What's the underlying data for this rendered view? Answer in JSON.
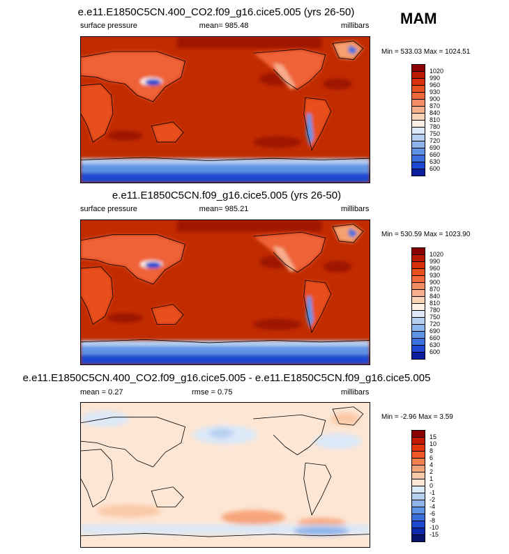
{
  "season": "MAM",
  "panels": [
    {
      "title": "e.e11.E1850C5CN.400_CO2.f09_g16.cice5.005 (yrs 26-50)",
      "left": "surface pressure",
      "center": "mean= 985.48",
      "right": "millibars",
      "minmax": "Min = 533.03 Max = 1024.51",
      "palette": "pressure"
    },
    {
      "title": "e.e11.E1850C5CN.f09_g16.cice5.005 (yrs 26-50)",
      "left": "surface pressure",
      "center": "mean= 985.21",
      "right": "millibars",
      "minmax": "Min = 530.59 Max = 1023.90",
      "palette": "pressure"
    },
    {
      "title": "e.e11.E1850C5CN.400_CO2.f09_g16.cice5.005 - e.e11.E1850C5CN.f09_g16.cice5.005",
      "left": "mean =   0.27",
      "center": "rmse =   0.75",
      "right": "millibars",
      "minmax": "Min =  -2.96 Max =   3.59",
      "palette": "diff"
    }
  ],
  "colorbars": {
    "pressure": {
      "labels": [
        "1020",
        "990",
        "960",
        "930",
        "900",
        "870",
        "840",
        "810",
        "780",
        "750",
        "720",
        "690",
        "660",
        "630",
        "600"
      ],
      "colors": [
        "#8b0000",
        "#b81a00",
        "#d6300c",
        "#e8501e",
        "#f06a3c",
        "#f48c64",
        "#f7ae8c",
        "#fbd4b8",
        "#fdf0e4",
        "#dde9f8",
        "#b6d0f2",
        "#8db5ec",
        "#5f94e4",
        "#3a6fdc",
        "#1f48d0",
        "#0a1e9e"
      ]
    },
    "diff": {
      "labels": [
        "15",
        "10",
        "8",
        "6",
        "4",
        "2",
        "1",
        "0",
        "-1",
        "-2",
        "-4",
        "-6",
        "-8",
        "-10",
        "-15"
      ],
      "colors": [
        "#8b0000",
        "#c41a00",
        "#e2380c",
        "#f05a28",
        "#f4804e",
        "#f7a47a",
        "#fbc9a8",
        "#fde6d4",
        "#dbe8f7",
        "#b6d0f2",
        "#8db5ec",
        "#5f94e4",
        "#3a6fdc",
        "#1f48d0",
        "#0d2aa8",
        "#05126e"
      ]
    }
  }
}
